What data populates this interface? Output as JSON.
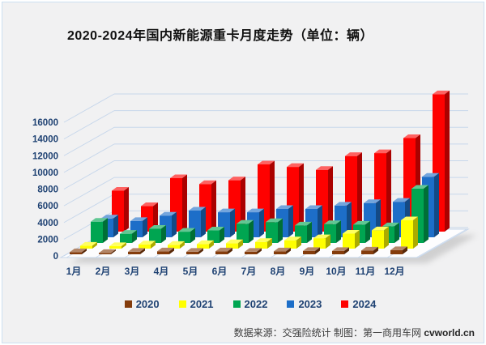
{
  "window": {
    "background": "#f1f1f2",
    "border_color": "#cde0f2"
  },
  "chart_data": {
    "type": "bar",
    "projection": "3d",
    "title": "2020-2024年国内新能源重卡月度走势（单位：辆）",
    "categories": [
      "1月",
      "2月",
      "3月",
      "4月",
      "5月",
      "6月",
      "7月",
      "8月",
      "9月",
      "10月",
      "11月",
      "12月"
    ],
    "y_axis": {
      "min": 0,
      "max": 16000,
      "step": 2000,
      "tick_labels": [
        "0",
        "2000",
        "4000",
        "6000",
        "8000",
        "10000",
        "12000",
        "14000",
        "16000"
      ]
    },
    "grid": true,
    "legend_position": "bottom",
    "series": [
      {
        "name": "2020",
        "color": "#843C0C",
        "values": [
          250,
          150,
          300,
          350,
          300,
          350,
          300,
          350,
          400,
          400,
          450,
          500
        ]
      },
      {
        "name": "2021",
        "color": "#FFFF00",
        "values": [
          350,
          300,
          500,
          450,
          550,
          650,
          800,
          1000,
          1250,
          1800,
          2200,
          3400
        ]
      },
      {
        "name": "2022",
        "color": "#00A551",
        "values": [
          2550,
          1100,
          1700,
          1350,
          1500,
          2300,
          2500,
          2100,
          2250,
          2200,
          2000,
          6500
        ]
      },
      {
        "name": "2023",
        "color": "#1D6EC8",
        "values": [
          2250,
          1950,
          2600,
          3200,
          3000,
          3000,
          3400,
          3400,
          3800,
          4100,
          4250,
          7250
        ]
      },
      {
        "name": "2024",
        "color": "#FE0100",
        "values": [
          4900,
          3050,
          6400,
          5700,
          6150,
          8050,
          7750,
          7400,
          9050,
          9400,
          11200,
          16450
        ]
      }
    ],
    "text_color": "#1f4273",
    "gridline_color": "#c7d7eb"
  },
  "footer": {
    "source_text": "数据来源：交强险统计 制图：第一商用车网 ",
    "brand": "cvworld.cn"
  }
}
